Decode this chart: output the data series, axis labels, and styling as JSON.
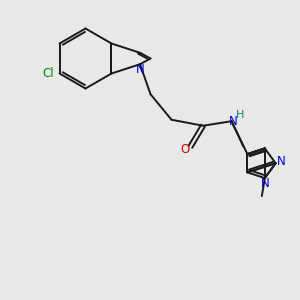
{
  "bg_color": "#e8e8e8",
  "bond_color": "#1a1a1a",
  "N_color": "#0000cc",
  "O_color": "#cc0000",
  "Cl_color": "#008800",
  "H_color": "#008888",
  "line_width": 1.4,
  "figsize": [
    3.0,
    3.0
  ],
  "dpi": 100,
  "xlim": [
    0,
    10
  ],
  "ylim": [
    0,
    10
  ]
}
